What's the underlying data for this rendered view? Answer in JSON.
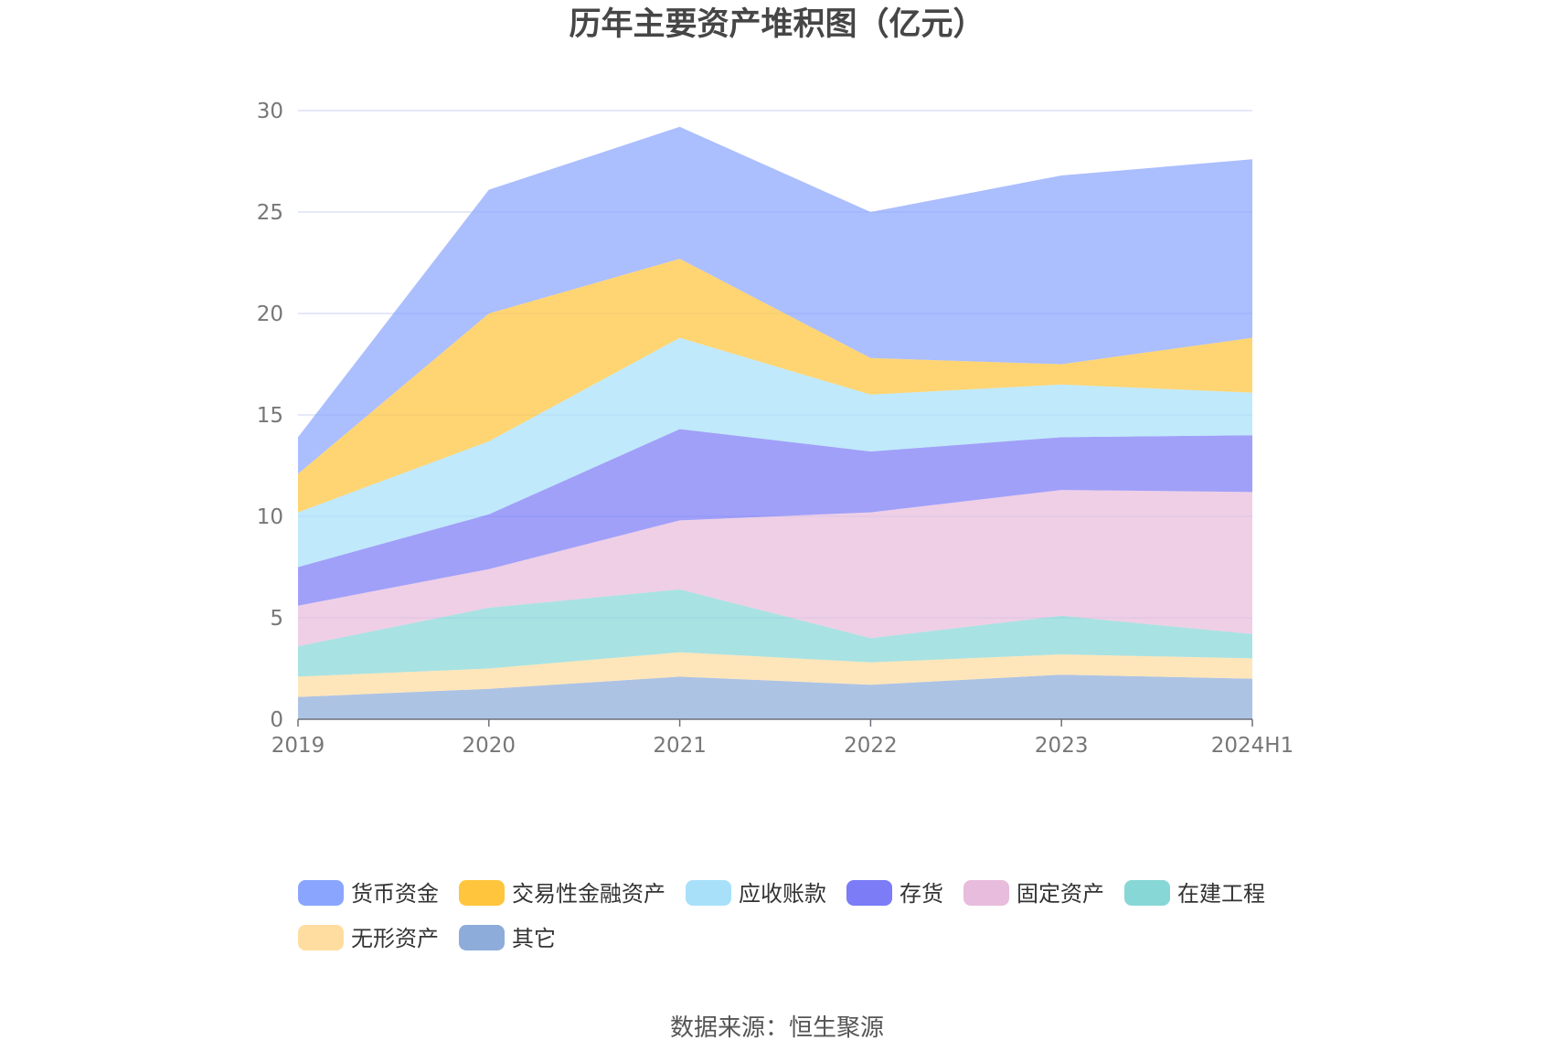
{
  "title": "历年主要资产堆积图（亿元）",
  "source": "数据来源：恒生聚源",
  "chart_data": {
    "type": "area",
    "stacked": true,
    "categories": [
      "2019",
      "2020",
      "2021",
      "2022",
      "2023",
      "2024H1"
    ],
    "y_ticks": [
      "0",
      "5",
      "10",
      "15",
      "20",
      "25",
      "30"
    ],
    "ylim": [
      0,
      30
    ],
    "grid": true,
    "legend_position": "bottom",
    "series": [
      {
        "name": "其它",
        "color": "#8EACDA",
        "values": [
          1.1,
          1.5,
          2.1,
          1.7,
          2.2,
          2.0
        ]
      },
      {
        "name": "无形资产",
        "color": "#FFDDA0",
        "values": [
          1.0,
          1.0,
          1.2,
          1.1,
          1.0,
          1.0
        ]
      },
      {
        "name": "在建工程",
        "color": "#88D7D7",
        "values": [
          1.5,
          3.0,
          3.1,
          1.2,
          1.9,
          1.2
        ]
      },
      {
        "name": "固定资产",
        "color": "#E7BCDC",
        "values": [
          2.0,
          1.9,
          3.4,
          6.2,
          6.2,
          7.0
        ]
      },
      {
        "name": "存货",
        "color": "#7B7CF6",
        "values": [
          1.9,
          2.7,
          4.5,
          3.0,
          2.6,
          2.8
        ]
      },
      {
        "name": "应收账款",
        "color": "#A8E0FA",
        "values": [
          2.7,
          3.6,
          4.5,
          2.8,
          2.6,
          2.1
        ]
      },
      {
        "name": "交易性金融资产",
        "color": "#FFC53D",
        "values": [
          1.9,
          6.3,
          3.9,
          1.8,
          1.0,
          2.7
        ]
      },
      {
        "name": "货币资金",
        "color": "#8AA5FD",
        "values": [
          1.8,
          6.1,
          6.5,
          7.2,
          9.3,
          8.8
        ]
      }
    ]
  },
  "legend": [
    {
      "label": "货币资金",
      "color": "#8AA5FD"
    },
    {
      "label": "交易性金融资产",
      "color": "#FFC53D"
    },
    {
      "label": "应收账款",
      "color": "#A8E0FA"
    },
    {
      "label": "存货",
      "color": "#7B7CF6"
    },
    {
      "label": "固定资产",
      "color": "#E7BCDC"
    },
    {
      "label": "在建工程",
      "color": "#88D7D7"
    },
    {
      "label": "无形资产",
      "color": "#FFDDA0"
    },
    {
      "label": "其它",
      "color": "#8EACDA"
    }
  ]
}
